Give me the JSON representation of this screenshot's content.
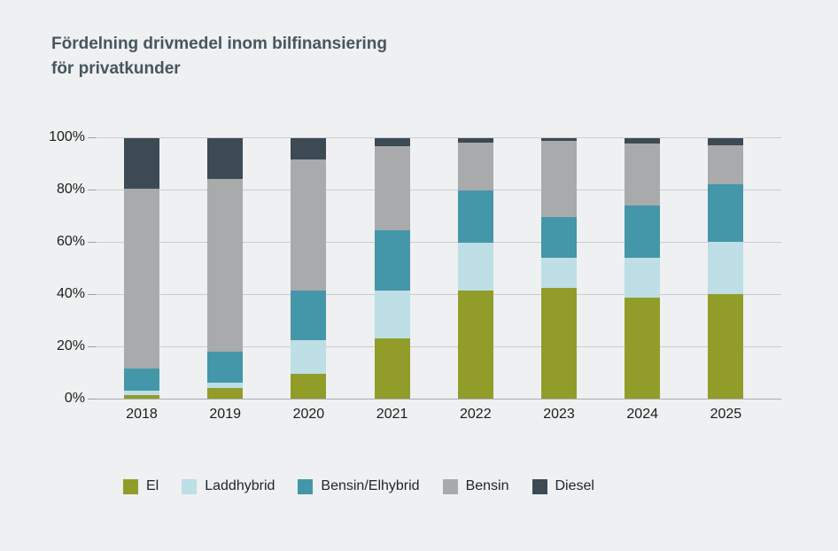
{
  "title": {
    "line1": "Fördelning drivmedel inom bilfinansiering",
    "line2": "för privatkunder"
  },
  "chart_data": {
    "type": "bar",
    "stacked": true,
    "title": "Fördelning drivmedel inom bilfinansiering för privatkunder",
    "categories": [
      "2018",
      "2019",
      "2020",
      "2021",
      "2022",
      "2023",
      "2024",
      "2025"
    ],
    "series": [
      {
        "name": "El",
        "color": "#919d28",
        "values": [
          1.5,
          4,
          9.5,
          23,
          41.5,
          42.5,
          38.5,
          40
        ]
      },
      {
        "name": "Laddhybrid",
        "color": "#bddfe5",
        "values": [
          1.5,
          2,
          13,
          18.5,
          18,
          11.5,
          15.5,
          20
        ]
      },
      {
        "name": "Bensin/Elhybrid",
        "color": "#4497a8",
        "values": [
          8.5,
          12,
          19,
          23,
          20,
          15.5,
          20,
          22
        ]
      },
      {
        "name": "Bensin",
        "color": "#a8aaac",
        "values": [
          69,
          66,
          50,
          32,
          18.5,
          29,
          23.5,
          15
        ]
      },
      {
        "name": "Diesel",
        "color": "#3c4a53",
        "values": [
          19.5,
          16,
          8.5,
          3.5,
          2,
          1.5,
          2.5,
          3
        ]
      }
    ],
    "ylim": [
      0,
      100
    ],
    "y_ticks": [
      "100%",
      "80%",
      "60%",
      "40%",
      "20%",
      "0%"
    ],
    "xlabel": "",
    "ylabel": "",
    "grid": true,
    "legend_position": "bottom"
  },
  "colors": {
    "background": "#eef0f1",
    "title_text": "#47565f",
    "axis_text": "#1d1d1b",
    "gridline": "#c9cccf",
    "axis_line": "#a9adb0"
  }
}
